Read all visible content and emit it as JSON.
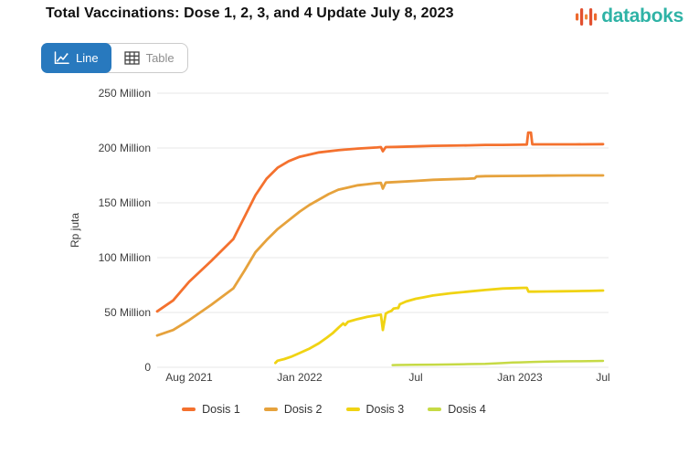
{
  "header": {
    "title": "Total Vaccinations: Dose 1, 2, 3, and 4 Update July 8, 2023",
    "brand": "databoks"
  },
  "toolbar": {
    "line_label": "Line",
    "table_label": "Table"
  },
  "colors": {
    "accent_blue": "#2879BE",
    "brand_teal": "#2FB3A6",
    "logo_bar_red": "#E2502F",
    "logo_bar_orange": "#F08A3C",
    "grid": "#E7E7E7",
    "tick_text": "#3D3D3D",
    "legend_text": "#333333"
  },
  "icons": {
    "line_button_icon": "line-chart-icon",
    "table_button_icon": "table-grid-icon",
    "brand_icon": "databoks-bars-icon"
  },
  "chart_data": {
    "type": "line",
    "title": "Total Vaccinations: Dose 1, 2, 3, and 4 Update July 8, 2023",
    "xlabel": "",
    "ylabel": "Rp juta",
    "ylim": [
      0,
      250
    ],
    "grid": true,
    "legend_position": "bottom",
    "t_unit": "months since 2021-06-01",
    "y_ticks": [
      {
        "v": 0,
        "label": "0"
      },
      {
        "v": 50,
        "label": "50 Million"
      },
      {
        "v": 100,
        "label": "100 Million"
      },
      {
        "v": 150,
        "label": "150 Million"
      },
      {
        "v": 200,
        "label": "200 Million"
      },
      {
        "v": 250,
        "label": "250 Million"
      }
    ],
    "x_ticks": [
      {
        "t": 2,
        "label": "Aug 2021"
      },
      {
        "t": 7,
        "label": "Jan 2022"
      },
      {
        "t": 13,
        "label": "Jul"
      },
      {
        "t": 19,
        "label": "Jan 2023"
      },
      {
        "t": 25,
        "label": "Jul"
      }
    ],
    "value_unit": "million doses",
    "series": [
      {
        "name": "Dosis 1",
        "color": "#F4712E",
        "points": [
          [
            0,
            51
          ],
          [
            1,
            61
          ],
          [
            2,
            78
          ],
          [
            3,
            97
          ],
          [
            4,
            117
          ],
          [
            4.5,
            137
          ],
          [
            5,
            157
          ],
          [
            5.5,
            172
          ],
          [
            6,
            182
          ],
          [
            6.5,
            188
          ],
          [
            7,
            192
          ],
          [
            8,
            196
          ],
          [
            9,
            198
          ],
          [
            10,
            199.5
          ],
          [
            11,
            200.5
          ],
          [
            11.2,
            200.8
          ],
          [
            11.3,
            197
          ],
          [
            11.45,
            200.8
          ],
          [
            12,
            201
          ],
          [
            13,
            201.5
          ],
          [
            14,
            202
          ],
          [
            15,
            202.2
          ],
          [
            16,
            202.4
          ],
          [
            17,
            202.8
          ],
          [
            18,
            202.8
          ],
          [
            19,
            203
          ],
          [
            19.5,
            203.2
          ],
          [
            19.6,
            214
          ],
          [
            19.8,
            214
          ],
          [
            19.9,
            203.3
          ],
          [
            21,
            203.3
          ],
          [
            23,
            203.3
          ],
          [
            25,
            203.5
          ]
        ]
      },
      {
        "name": "Dosis 2",
        "color": "#E6A23C",
        "points": [
          [
            0,
            29
          ],
          [
            1,
            34
          ],
          [
            2,
            43
          ],
          [
            3,
            57
          ],
          [
            4,
            72
          ],
          [
            4.5,
            88
          ],
          [
            5,
            105
          ],
          [
            5.5,
            116
          ],
          [
            6,
            126
          ],
          [
            6.5,
            134
          ],
          [
            7,
            142
          ],
          [
            7.5,
            148
          ],
          [
            8,
            153
          ],
          [
            8.5,
            158
          ],
          [
            9,
            162
          ],
          [
            9.5,
            164
          ],
          [
            10,
            166
          ],
          [
            10.5,
            167
          ],
          [
            11,
            168
          ],
          [
            11.2,
            168.2
          ],
          [
            11.3,
            163
          ],
          [
            11.45,
            168.5
          ],
          [
            12,
            169
          ],
          [
            13,
            170
          ],
          [
            14,
            171
          ],
          [
            15,
            171.5
          ],
          [
            16,
            172
          ],
          [
            16.4,
            172.3
          ],
          [
            16.5,
            174
          ],
          [
            17,
            174.3
          ],
          [
            18,
            174.5
          ],
          [
            19,
            174.6
          ],
          [
            20,
            174.7
          ],
          [
            21,
            174.8
          ],
          [
            22,
            174.9
          ],
          [
            23,
            175
          ],
          [
            24,
            175
          ],
          [
            25,
            175
          ]
        ]
      },
      {
        "name": "Dosis 3",
        "color": "#F0D313",
        "points": [
          [
            5.9,
            4
          ],
          [
            6,
            6
          ],
          [
            6.3,
            7.5
          ],
          [
            6.6,
            9.5
          ],
          [
            7,
            13
          ],
          [
            7.5,
            17
          ],
          [
            8,
            22
          ],
          [
            8.4,
            27
          ],
          [
            8.7,
            31
          ],
          [
            9,
            36
          ],
          [
            9.25,
            40
          ],
          [
            9.35,
            38.5
          ],
          [
            9.5,
            41.5
          ],
          [
            9.7,
            42.5
          ],
          [
            10,
            44
          ],
          [
            10.5,
            46
          ],
          [
            11,
            47.5
          ],
          [
            11.2,
            48
          ],
          [
            11.3,
            34
          ],
          [
            11.45,
            49
          ],
          [
            11.6,
            50.5
          ],
          [
            11.75,
            51.5
          ],
          [
            11.85,
            53.5
          ],
          [
            12,
            54
          ],
          [
            12.1,
            54
          ],
          [
            12.18,
            57.5
          ],
          [
            12.5,
            60
          ],
          [
            13,
            62.5
          ],
          [
            13.5,
            64
          ],
          [
            14,
            65.5
          ],
          [
            15,
            67.5
          ],
          [
            16,
            69
          ],
          [
            17,
            70.5
          ],
          [
            18,
            71.8
          ],
          [
            19,
            72.3
          ],
          [
            19.5,
            72.5
          ],
          [
            19.62,
            69
          ],
          [
            20,
            69
          ],
          [
            21,
            69.2
          ],
          [
            22,
            69.3
          ],
          [
            23,
            69.5
          ],
          [
            24,
            69.7
          ],
          [
            25,
            70
          ]
        ]
      },
      {
        "name": "Dosis 4",
        "color": "#C6DA45",
        "points": [
          [
            11.8,
            2
          ],
          [
            12,
            2.1
          ],
          [
            13,
            2.3
          ],
          [
            14,
            2.4
          ],
          [
            15,
            2.6
          ],
          [
            16,
            2.9
          ],
          [
            17,
            3.2
          ],
          [
            18,
            3.8
          ],
          [
            18.6,
            4.3
          ],
          [
            19,
            4.5
          ],
          [
            20,
            4.9
          ],
          [
            21,
            5.2
          ],
          [
            22,
            5.4
          ],
          [
            23,
            5.5
          ],
          [
            24,
            5.6
          ],
          [
            25,
            5.8
          ]
        ]
      }
    ]
  }
}
